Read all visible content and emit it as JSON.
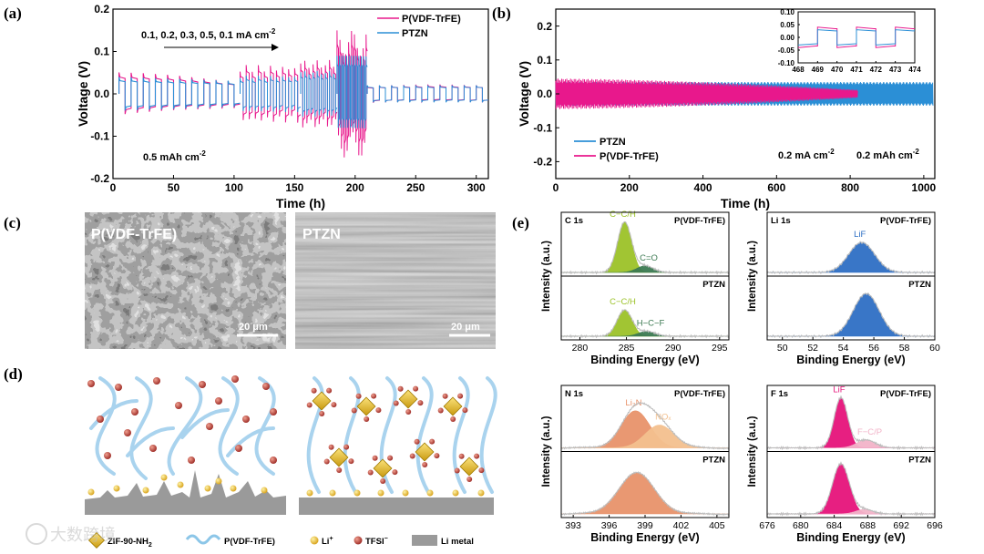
{
  "panel_labels": {
    "a": "(a)",
    "b": "(b)",
    "c": "(c)",
    "d": "(d)",
    "e": "(e)"
  },
  "colors": {
    "pvdf": "#e8188c",
    "ptzn": "#2b8fd6",
    "green": "#9cc228",
    "dkgreen": "#3c7a52",
    "blue": "#2e6fc4",
    "orange": "#e8926a",
    "peach": "#f3c08e",
    "magenta": "#e6137a",
    "pink": "#f2b3c8"
  },
  "chart_data": [
    {
      "type": "line",
      "id": "a",
      "xlabel": "Time (h)",
      "ylabel": "Voltage (V)",
      "xlim": [
        0,
        310
      ],
      "ylim": [
        -0.2,
        0.2
      ],
      "xticks": [
        0,
        50,
        100,
        150,
        200,
        250,
        300
      ],
      "yticks": [
        -0.2,
        -0.1,
        0.0,
        0.1,
        0.2
      ],
      "ytick_labels": [
        "-0.2",
        "-0.1",
        "0.0",
        "0.1",
        "0.2"
      ],
      "legend": [
        "P(VDF-TrFE)",
        "PTZN"
      ],
      "annotation_rates": "0.1, 0.2, 0.3, 0.5, 0.1 mA cm",
      "annotation_rates_sup": "-2",
      "annotation_cap": "0.5 mAh cm",
      "annotation_cap_sup": "-2",
      "segments": [
        {
          "rate": 0.1,
          "x": [
            5,
            105
          ],
          "amp_pvdf": 0.05,
          "amp_ptzn": 0.04,
          "decay_pvdf": 0.02
        },
        {
          "rate": 0.2,
          "x": [
            105,
            155
          ],
          "amp_pvdf": 0.06,
          "amp_ptzn": 0.04
        },
        {
          "rate": 0.3,
          "x": [
            155,
            185
          ],
          "amp_pvdf": 0.07,
          "amp_ptzn": 0.05
        },
        {
          "rate": 0.5,
          "x": [
            185,
            210
          ],
          "amp_pvdf": 0.12,
          "amp_ptzn": 0.085
        },
        {
          "rate": 0.1,
          "x": [
            210,
            310
          ],
          "amp_pvdf": 0.02,
          "amp_ptzn": 0.02
        }
      ]
    },
    {
      "type": "line",
      "id": "b",
      "xlabel": "Time (h)",
      "ylabel": "Voltage (V)",
      "xlim": [
        0,
        1030
      ],
      "ylim": [
        -0.25,
        0.25
      ],
      "xticks": [
        0,
        200,
        400,
        600,
        800,
        1000
      ],
      "yticks": [
        -0.2,
        -0.1,
        0.0,
        0.1,
        0.2
      ],
      "ytick_labels": [
        "-0.2",
        "-0.1",
        "0.0",
        "0.1",
        "0.2"
      ],
      "legend": [
        "PTZN",
        "P(VDF-TrFE)"
      ],
      "annotation_rate": "0.2 mA cm",
      "annotation_rate_sup": "-2",
      "annotation_cap": "0.2 mAh cm",
      "annotation_cap_sup": "-2",
      "series": [
        {
          "name": "PTZN",
          "x_range": [
            0,
            1025
          ],
          "amp": 0.035
        },
        {
          "name": "P(VDF-TrFE)",
          "x_range": [
            0,
            820
          ],
          "amp_start": 0.045,
          "amp_end": 0.012
        }
      ],
      "inset": {
        "xlim": [
          468,
          474
        ],
        "ylim": [
          -0.1,
          0.1
        ],
        "xticks": [
          468,
          469,
          470,
          471,
          472,
          473,
          474
        ],
        "yticks": [
          -0.1,
          -0.05,
          0.0,
          0.05,
          0.1
        ],
        "ytick_labels": [
          "-0.10",
          "-0.05",
          "0.00",
          "0.05",
          "0.10"
        ],
        "amp_pvdf": 0.04,
        "amp_ptzn": 0.03
      }
    },
    {
      "type": "area",
      "id": "e",
      "xlabel": "Binding Energy (eV)",
      "ylabel": "Intensity (a.u.)",
      "subplots": [
        {
          "element": "C 1s",
          "xlim": [
            278,
            296
          ],
          "xticks": [
            280,
            285,
            290,
            295
          ],
          "top": {
            "sample": "P(VDF-TrFE)",
            "peaks": [
              {
                "name": "C−C/H",
                "center": 284.8,
                "height": 0.92,
                "width": 0.75,
                "color": "green"
              },
              {
                "name": "C=O",
                "center": 287.0,
                "height": 0.12,
                "width": 0.9,
                "color": "dkgreen"
              }
            ]
          },
          "bottom": {
            "sample": "PTZN",
            "peaks": [
              {
                "name": "C−C/H",
                "center": 284.8,
                "height": 0.48,
                "width": 0.8,
                "color": "green"
              },
              {
                "name": "H−C−F",
                "center": 287.2,
                "height": 0.09,
                "width": 0.9,
                "color": "dkgreen"
              }
            ]
          }
        },
        {
          "element": "Li 1s",
          "xlim": [
            49,
            60
          ],
          "xticks": [
            50,
            52,
            54,
            56,
            58,
            60
          ],
          "top": {
            "sample": "P(VDF-TrFE)",
            "peaks": [
              {
                "name": "LiF",
                "center": 55.2,
                "height": 0.55,
                "width": 0.85,
                "color": "blue"
              }
            ]
          },
          "bottom": {
            "sample": "PTZN",
            "peaks": [
              {
                "name": "",
                "center": 55.5,
                "height": 0.78,
                "width": 0.85,
                "color": "blue"
              }
            ]
          }
        },
        {
          "element": "N 1s",
          "xlim": [
            392,
            406
          ],
          "xticks": [
            393,
            396,
            399,
            402,
            405
          ],
          "top": {
            "sample": "P(VDF-TrFE)",
            "peaks": [
              {
                "name": "Li₃N",
                "center": 398.2,
                "height": 0.65,
                "width": 1.2,
                "color": "orange"
              },
              {
                "name": "NOₓ",
                "center": 400.2,
                "height": 0.4,
                "width": 1.2,
                "color": "peach"
              }
            ]
          },
          "bottom": {
            "sample": "PTZN",
            "peaks": [
              {
                "name": "",
                "center": 398.3,
                "height": 0.72,
                "width": 1.5,
                "color": "orange"
              }
            ]
          }
        },
        {
          "element": "F 1s",
          "xlim": [
            676,
            696
          ],
          "xticks": [
            676,
            680,
            684,
            688,
            692,
            696
          ],
          "top": {
            "sample": "P(VDF-TrFE)",
            "peaks": [
              {
                "name": "LiF",
                "center": 684.8,
                "height": 0.88,
                "width": 0.8,
                "color": "magenta"
              },
              {
                "name": "F−C/P",
                "center": 687.8,
                "height": 0.14,
                "width": 1.1,
                "color": "pink"
              }
            ]
          },
          "bottom": {
            "sample": "PTZN",
            "peaks": [
              {
                "name": "",
                "center": 684.8,
                "height": 0.88,
                "width": 1.0,
                "color": "magenta"
              },
              {
                "name": "",
                "center": 687.6,
                "height": 0.08,
                "width": 1.0,
                "color": "pink"
              }
            ]
          }
        }
      ]
    }
  ],
  "sem": {
    "left_label": "P(VDF-TrFE)",
    "right_label": "PTZN",
    "scale_left": "20 μm",
    "scale_right": "20 μm"
  },
  "schematic_legend": {
    "zif": "ZIF-90-NH",
    "zif_sub": "2",
    "polymer": "P(VDF-TrFE)",
    "li": "Li",
    "li_sup": "+",
    "tfsi": "TFSI",
    "tfsi_sup": "−",
    "li_metal": "Li metal"
  },
  "watermark": "大数跨境"
}
